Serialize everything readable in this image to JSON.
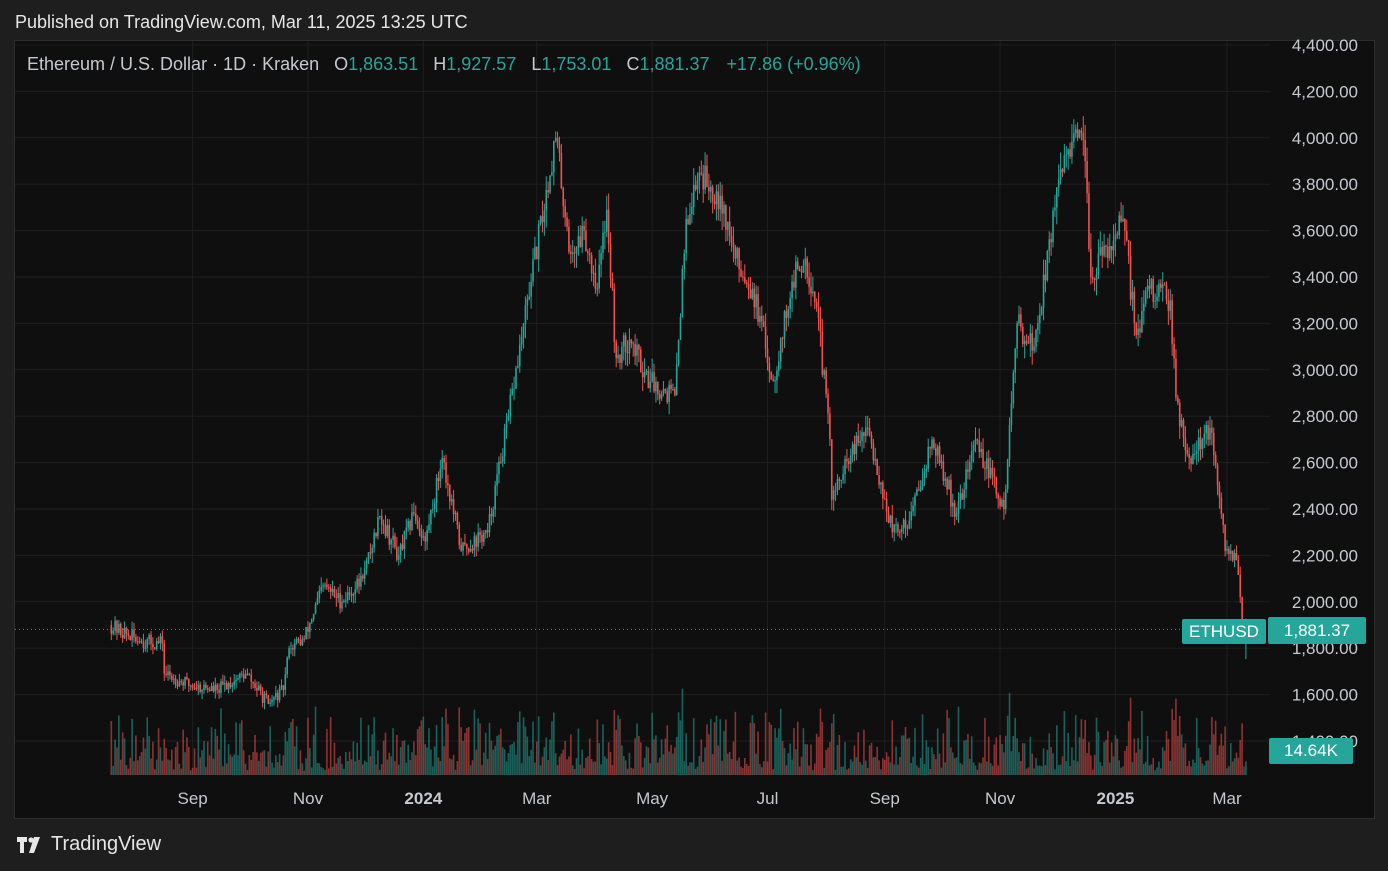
{
  "header": {
    "published": "Published on TradingView.com, Mar 11, 2025 13:25 UTC"
  },
  "legend": {
    "symbol": "Ethereum / U.S. Dollar · 1D · Kraken",
    "o_label": "O",
    "o_value": "1,863.51",
    "h_label": "H",
    "h_value": "1,927.57",
    "l_label": "L",
    "l_value": "1,753.01",
    "c_label": "C",
    "c_value": "1,881.37",
    "change": "+17.86 (+0.96%)"
  },
  "price_tag": {
    "symbol": "ETHUSD",
    "price": "1,881.37"
  },
  "volume_tag": {
    "value": "14.64K"
  },
  "brand": {
    "name": "TradingView"
  },
  "colors": {
    "up": "#26a69a",
    "down": "#ef5350",
    "background": "#0f0f0f",
    "grid": "#1e1e1e"
  },
  "chart_data": {
    "type": "candlestick",
    "title": "Ethereum / U.S. Dollar · 1D · Kraken",
    "ylim": [
      1400,
      4400
    ],
    "y_ticks": [
      "4,400.00",
      "4,200.00",
      "4,000.00",
      "3,800.00",
      "3,600.00",
      "3,400.00",
      "3,200.00",
      "3,000.00",
      "2,800.00",
      "2,600.00",
      "2,400.00",
      "2,200.00",
      "2,000.00",
      "1,800.00",
      "1,600.00",
      "1,400.00"
    ],
    "y_tick_values": [
      4400,
      4200,
      4000,
      3800,
      3600,
      3400,
      3200,
      3000,
      2800,
      2600,
      2400,
      2200,
      2000,
      1800,
      1600,
      1400
    ],
    "x_ticks": [
      {
        "label": "Sep",
        "date": "2023-09-01",
        "bold": false
      },
      {
        "label": "Nov",
        "date": "2023-11-01",
        "bold": false
      },
      {
        "label": "2024",
        "date": "2024-01-01",
        "bold": true
      },
      {
        "label": "Mar",
        "date": "2024-03-01",
        "bold": false
      },
      {
        "label": "May",
        "date": "2024-05-01",
        "bold": false
      },
      {
        "label": "Jul",
        "date": "2024-07-01",
        "bold": false
      },
      {
        "label": "Sep",
        "date": "2024-09-01",
        "bold": false
      },
      {
        "label": "Nov",
        "date": "2024-11-01",
        "bold": false
      },
      {
        "label": "2025",
        "date": "2025-01-01",
        "bold": true
      },
      {
        "label": "Mar",
        "date": "2025-03-01",
        "bold": false
      }
    ],
    "last_price": 1881.37,
    "series": [
      {
        "name": "ETHUSD",
        "anchors": [
          {
            "date": "2023-07-20",
            "price": 1900
          },
          {
            "date": "2023-08-05",
            "price": 1830
          },
          {
            "date": "2023-08-17",
            "price": 1820
          },
          {
            "date": "2023-08-18",
            "price": 1690
          },
          {
            "date": "2023-09-01",
            "price": 1640
          },
          {
            "date": "2023-09-15",
            "price": 1620
          },
          {
            "date": "2023-09-30",
            "price": 1690
          },
          {
            "date": "2023-10-12",
            "price": 1560
          },
          {
            "date": "2023-10-20",
            "price": 1620
          },
          {
            "date": "2023-10-23",
            "price": 1800
          },
          {
            "date": "2023-10-31",
            "price": 1840
          },
          {
            "date": "2023-11-10",
            "price": 2070
          },
          {
            "date": "2023-11-20",
            "price": 2000
          },
          {
            "date": "2023-12-01",
            "price": 2100
          },
          {
            "date": "2023-12-10",
            "price": 2370
          },
          {
            "date": "2023-12-20",
            "price": 2200
          },
          {
            "date": "2023-12-28",
            "price": 2380
          },
          {
            "date": "2024-01-03",
            "price": 2260
          },
          {
            "date": "2024-01-12",
            "price": 2620
          },
          {
            "date": "2024-01-22",
            "price": 2220
          },
          {
            "date": "2024-02-05",
            "price": 2300
          },
          {
            "date": "2024-02-16",
            "price": 2800
          },
          {
            "date": "2024-02-28",
            "price": 3380
          },
          {
            "date": "2024-03-12",
            "price": 4000
          },
          {
            "date": "2024-03-20",
            "price": 3500
          },
          {
            "date": "2024-03-27",
            "price": 3600
          },
          {
            "date": "2024-04-03",
            "price": 3350
          },
          {
            "date": "2024-04-08",
            "price": 3690
          },
          {
            "date": "2024-04-13",
            "price": 3050
          },
          {
            "date": "2024-04-20",
            "price": 3130
          },
          {
            "date": "2024-05-01",
            "price": 2950
          },
          {
            "date": "2024-05-14",
            "price": 2890
          },
          {
            "date": "2024-05-20",
            "price": 3650
          },
          {
            "date": "2024-05-27",
            "price": 3850
          },
          {
            "date": "2024-06-07",
            "price": 3750
          },
          {
            "date": "2024-06-15",
            "price": 3480
          },
          {
            "date": "2024-06-24",
            "price": 3350
          },
          {
            "date": "2024-07-05",
            "price": 2950
          },
          {
            "date": "2024-07-15",
            "price": 3380
          },
          {
            "date": "2024-07-22",
            "price": 3480
          },
          {
            "date": "2024-07-28",
            "price": 3270
          },
          {
            "date": "2024-08-04",
            "price": 2700
          },
          {
            "date": "2024-08-05",
            "price": 2440
          },
          {
            "date": "2024-08-15",
            "price": 2630
          },
          {
            "date": "2024-08-24",
            "price": 2750
          },
          {
            "date": "2024-09-06",
            "price": 2300
          },
          {
            "date": "2024-09-15",
            "price": 2350
          },
          {
            "date": "2024-09-27",
            "price": 2700
          },
          {
            "date": "2024-10-10",
            "price": 2380
          },
          {
            "date": "2024-10-20",
            "price": 2700
          },
          {
            "date": "2024-11-04",
            "price": 2400
          },
          {
            "date": "2024-11-11",
            "price": 3200
          },
          {
            "date": "2024-11-20",
            "price": 3100
          },
          {
            "date": "2024-12-01",
            "price": 3700
          },
          {
            "date": "2024-12-08",
            "price": 3950
          },
          {
            "date": "2024-12-16",
            "price": 3990
          },
          {
            "date": "2024-12-20",
            "price": 3400
          },
          {
            "date": "2025-01-06",
            "price": 3650
          },
          {
            "date": "2025-01-13",
            "price": 3150
          },
          {
            "date": "2025-01-20",
            "price": 3350
          },
          {
            "date": "2025-01-31",
            "price": 3300
          },
          {
            "date": "2025-02-03",
            "price": 2880
          },
          {
            "date": "2025-02-10",
            "price": 2620
          },
          {
            "date": "2025-02-21",
            "price": 2750
          },
          {
            "date": "2025-02-25",
            "price": 2500
          },
          {
            "date": "2025-03-01",
            "price": 2220
          },
          {
            "date": "2025-03-06",
            "price": 2210
          },
          {
            "date": "2025-03-09",
            "price": 2020
          },
          {
            "date": "2025-03-10",
            "price": 1863.51
          },
          {
            "date": "2025-03-11",
            "price": 1881.37
          }
        ]
      }
    ]
  }
}
